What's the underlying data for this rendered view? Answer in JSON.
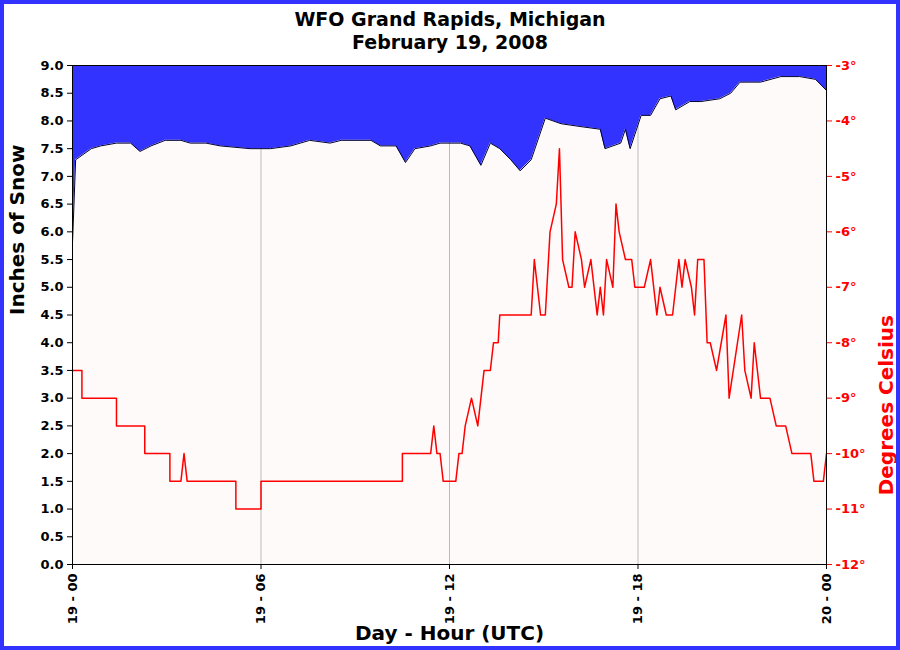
{
  "chart_data": {
    "type": "area_line",
    "title": "WFO Grand Rapids, Michigan",
    "subtitle": "February 19, 2008",
    "x_label": "Day - Hour (UTC)",
    "y_label": "Inches of Snow",
    "y2_label": "Degrees Celsius",
    "xlim": [
      0,
      24
    ],
    "xticks": [
      {
        "value": 0,
        "label": "19 - 00"
      },
      {
        "value": 6,
        "label": "19 - 06"
      },
      {
        "value": 12,
        "label": "19 - 12"
      },
      {
        "value": 18,
        "label": "19 - 18"
      },
      {
        "value": 24,
        "label": "20 - 00"
      }
    ],
    "ylim": [
      0,
      9
    ],
    "yticks": [
      {
        "value": 0,
        "label": "0.0"
      },
      {
        "value": 0.5,
        "label": "0.5"
      },
      {
        "value": 1,
        "label": "1.0"
      },
      {
        "value": 1.5,
        "label": "1.5"
      },
      {
        "value": 2,
        "label": "2.0"
      },
      {
        "value": 2.5,
        "label": "2.5"
      },
      {
        "value": 3,
        "label": "3.0"
      },
      {
        "value": 3.5,
        "label": "3.5"
      },
      {
        "value": 4,
        "label": "4.0"
      },
      {
        "value": 4.5,
        "label": "4.5"
      },
      {
        "value": 5,
        "label": "5.0"
      },
      {
        "value": 5.5,
        "label": "5.5"
      },
      {
        "value": 6,
        "label": "6.0"
      },
      {
        "value": 6.5,
        "label": "6.5"
      },
      {
        "value": 7,
        "label": "7.0"
      },
      {
        "value": 7.5,
        "label": "7.5"
      },
      {
        "value": 8,
        "label": "8.0"
      },
      {
        "value": 8.5,
        "label": "8.5"
      },
      {
        "value": 9,
        "label": "9.0"
      }
    ],
    "y2lim": [
      -12,
      -3
    ],
    "y2ticks": [
      {
        "value": -12,
        "label": "-12°"
      },
      {
        "value": -11,
        "label": "-11°"
      },
      {
        "value": -10,
        "label": "-10°"
      },
      {
        "value": -9,
        "label": "-9°"
      },
      {
        "value": -8,
        "label": "-8°"
      },
      {
        "value": -7,
        "label": "-7°"
      },
      {
        "value": -6,
        "label": "-6°"
      },
      {
        "value": -5,
        "label": "-5°"
      },
      {
        "value": -4,
        "label": "-4°"
      },
      {
        "value": -3,
        "label": "-3°"
      }
    ],
    "grid": "x",
    "series": [
      {
        "name": "Inches of Snow",
        "type": "area",
        "color": "#3333ff",
        "x": [
          0,
          0.1,
          0.6,
          0.9,
          1.4,
          1.85,
          2.15,
          2.5,
          2.95,
          3.45,
          3.75,
          4.25,
          4.7,
          5.65,
          6.3,
          6.95,
          7.55,
          8.2,
          8.55,
          9.5,
          9.8,
          10.3,
          10.6,
          10.9,
          11.4,
          11.7,
          12.35,
          12.65,
          13.0,
          13.3,
          13.6,
          13.95,
          14.25,
          14.6,
          15.05,
          15.55,
          16.15,
          16.8,
          16.95,
          17.45,
          17.6,
          17.75,
          18.1,
          18.4,
          18.7,
          19.05,
          19.2,
          19.65,
          20.0,
          20.6,
          20.95,
          21.25,
          21.9,
          22.55,
          23.15,
          23.65,
          24
        ],
        "values": [
          5.8,
          7.3,
          7.5,
          7.55,
          7.6,
          7.6,
          7.45,
          7.55,
          7.65,
          7.65,
          7.6,
          7.6,
          7.55,
          7.5,
          7.5,
          7.55,
          7.65,
          7.6,
          7.65,
          7.65,
          7.55,
          7.55,
          7.25,
          7.5,
          7.55,
          7.6,
          7.6,
          7.55,
          7.2,
          7.6,
          7.5,
          7.3,
          7.1,
          7.3,
          8.05,
          7.95,
          7.9,
          7.85,
          7.5,
          7.6,
          7.85,
          7.5,
          8.1,
          8.1,
          8.4,
          8.45,
          8.2,
          8.35,
          8.35,
          8.4,
          8.5,
          8.7,
          8.7,
          8.8,
          8.8,
          8.75,
          8.55
        ]
      },
      {
        "name": "Degrees Celsius",
        "type": "line",
        "axis": "y2",
        "color": "#ff0000",
        "x": [
          0,
          0.3,
          0.3,
          1.4,
          1.4,
          2.3,
          2.3,
          3.1,
          3.1,
          3.45,
          3.55,
          3.65,
          5.2,
          5.2,
          6.0,
          6.0,
          10.5,
          10.5,
          11.4,
          11.5,
          11.6,
          11.7,
          11.8,
          12.2,
          12.3,
          12.4,
          12.5,
          12.7,
          12.9,
          13.0,
          13.1,
          13.3,
          13.4,
          13.55,
          13.6,
          14.6,
          14.7,
          14.9,
          15.05,
          15.2,
          15.4,
          15.5,
          15.6,
          15.8,
          15.9,
          16.0,
          16.2,
          16.3,
          16.5,
          16.6,
          16.7,
          16.8,
          16.9,
          17.0,
          17.2,
          17.3,
          17.4,
          17.6,
          17.8,
          17.9,
          18.2,
          18.4,
          18.6,
          18.7,
          18.9,
          19.1,
          19.3,
          19.4,
          19.5,
          19.7,
          19.8,
          19.9,
          20.1,
          20.2,
          20.3,
          20.5,
          20.8,
          20.9,
          21.3,
          21.4,
          21.6,
          21.7,
          21.9,
          22.2,
          22.4,
          22.7,
          22.9,
          23.5,
          23.6,
          23.9,
          24
        ],
        "values": [
          -8.5,
          -8.5,
          -9,
          -9,
          -9.5,
          -9.5,
          -10,
          -10,
          -10.5,
          -10.5,
          -10,
          -10.5,
          -10.5,
          -11,
          -11,
          -10.5,
          -10.5,
          -10,
          -10,
          -9.5,
          -10,
          -10,
          -10.5,
          -10.5,
          -10,
          -10,
          -9.5,
          -9,
          -9.5,
          -9,
          -8.5,
          -8.5,
          -8,
          -8,
          -7.5,
          -7.5,
          -6.5,
          -7.5,
          -7.5,
          -6,
          -5.5,
          -4.5,
          -6.5,
          -7,
          -7,
          -6,
          -6.5,
          -7,
          -6.5,
          -7,
          -7.5,
          -7,
          -7.5,
          -6.5,
          -7,
          -5.5,
          -6,
          -6.5,
          -6.5,
          -7,
          -7,
          -6.5,
          -7.5,
          -7,
          -7.5,
          -7.5,
          -6.5,
          -7,
          -6.5,
          -7,
          -7.5,
          -6.5,
          -6.5,
          -8,
          -8,
          -8.5,
          -7.5,
          -9,
          -7.5,
          -8.5,
          -9,
          -8,
          -9,
          -9,
          -9.5,
          -9.5,
          -10,
          -10,
          -10.5,
          -10.5,
          -10
        ]
      }
    ]
  }
}
